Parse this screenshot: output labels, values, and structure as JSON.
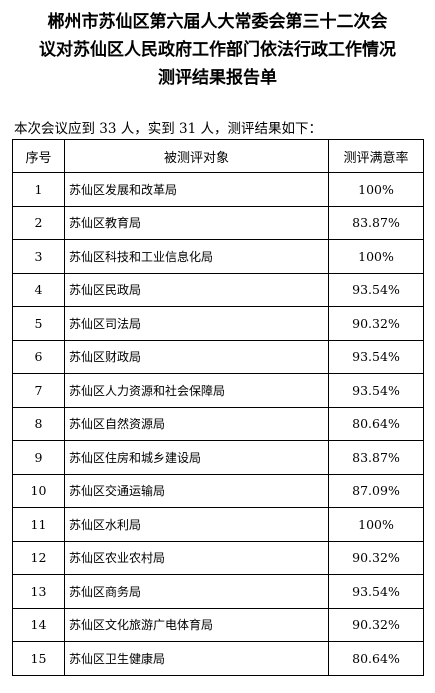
{
  "title": {
    "line1": "郴州市苏仙区第六届人大常委会第三十二次会",
    "line2": "议对苏仙区人民政府工作部门依法行政工作情况",
    "line3": "测评结果报告单"
  },
  "summary": "本次会议应到 33 人，实到 31 人，测评结果如下：",
  "table": {
    "headers": {
      "index": "序号",
      "target": "被测评对象",
      "rate": "测评满意率"
    },
    "rows": [
      {
        "index": "1",
        "target": "苏仙区发展和改革局",
        "rate": "100%"
      },
      {
        "index": "2",
        "target": "苏仙区教育局",
        "rate": "83.87%"
      },
      {
        "index": "3",
        "target": "苏仙区科技和工业信息化局",
        "rate": "100%"
      },
      {
        "index": "4",
        "target": "苏仙区民政局",
        "rate": "93.54%"
      },
      {
        "index": "5",
        "target": "苏仙区司法局",
        "rate": "90.32%"
      },
      {
        "index": "6",
        "target": "苏仙区财政局",
        "rate": "93.54%"
      },
      {
        "index": "7",
        "target": "苏仙区人力资源和社会保障局",
        "rate": "93.54%"
      },
      {
        "index": "8",
        "target": "苏仙区自然资源局",
        "rate": "80.64%"
      },
      {
        "index": "9",
        "target": "苏仙区住房和城乡建设局",
        "rate": "83.87%"
      },
      {
        "index": "10",
        "target": "苏仙区交通运输局",
        "rate": "87.09%"
      },
      {
        "index": "11",
        "target": "苏仙区水利局",
        "rate": "100%"
      },
      {
        "index": "12",
        "target": "苏仙区农业农村局",
        "rate": "90.32%"
      },
      {
        "index": "13",
        "target": "苏仙区商务局",
        "rate": "93.54%"
      },
      {
        "index": "14",
        "target": "苏仙区文化旅游广电体育局",
        "rate": "90.32%"
      },
      {
        "index": "15",
        "target": "苏仙区卫生健康局",
        "rate": "80.64%"
      }
    ]
  }
}
